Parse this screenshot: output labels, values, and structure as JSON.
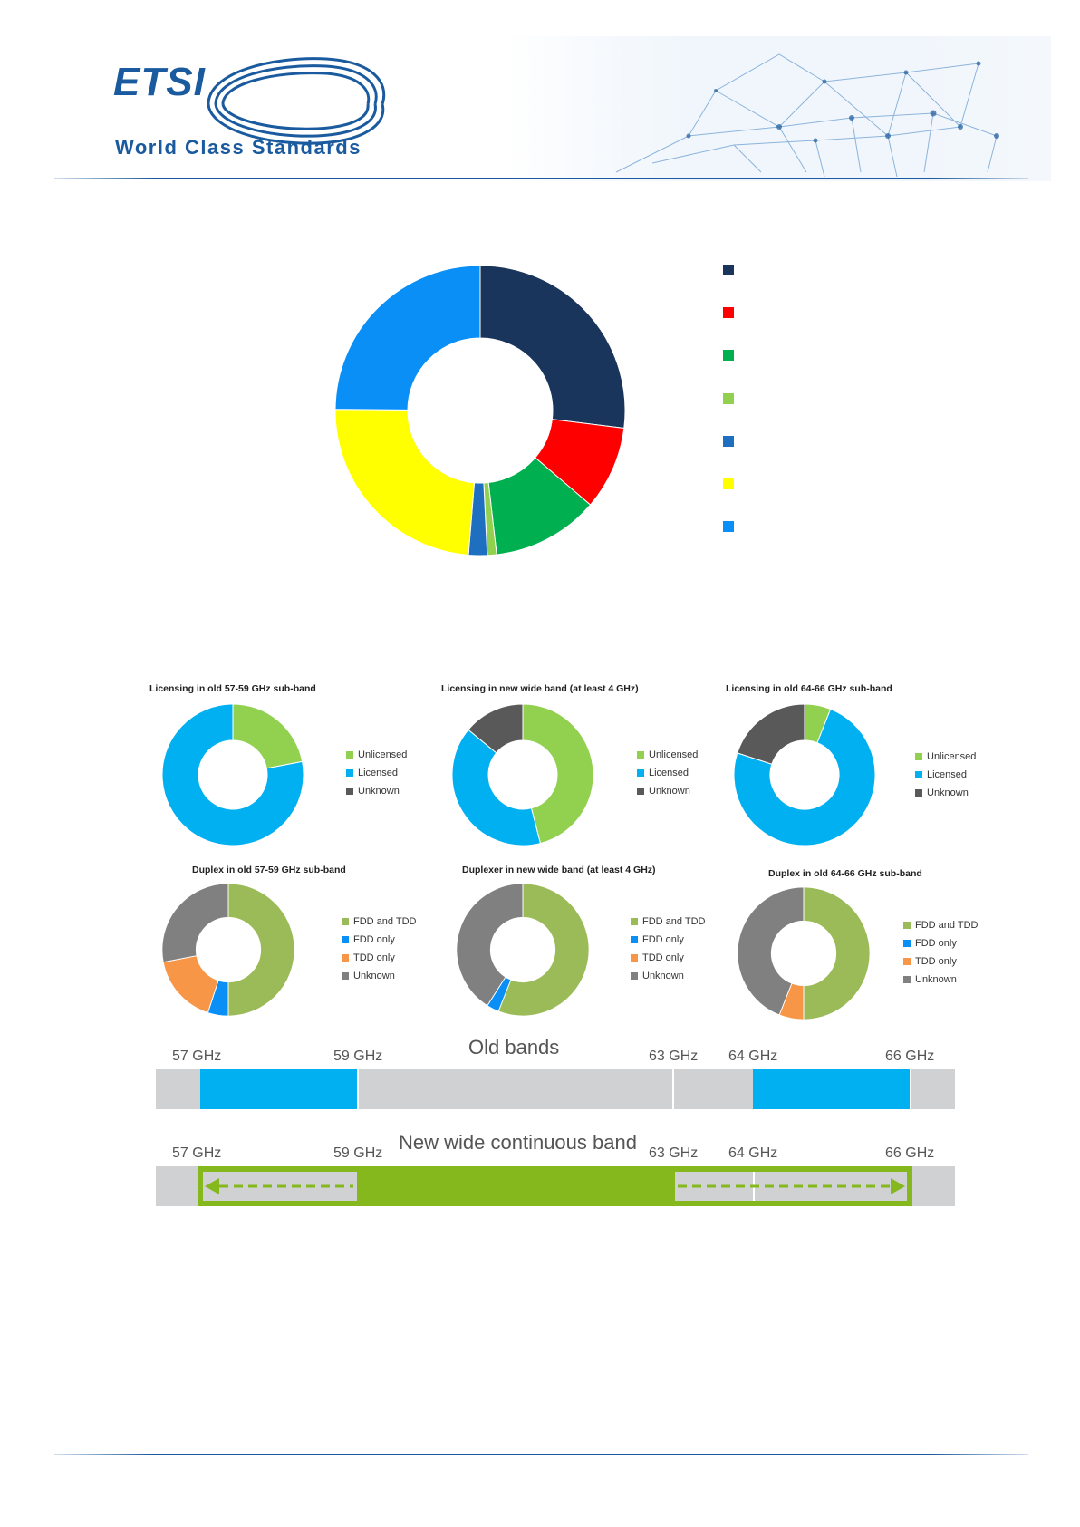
{
  "header": {
    "logo_text": "ETSI",
    "tagline": "World Class Standards"
  },
  "main_chart": {
    "colors": [
      "#1a355b",
      "#ff0000",
      "#00b050",
      "#92d050",
      "#1f6fc0",
      "#ffff00",
      "#0a8ff7"
    ],
    "legend_labels": [
      "",
      "",
      "",
      "",
      "",
      "",
      ""
    ]
  },
  "chart_data": [
    {
      "type": "pie",
      "title": "",
      "values": [
        26,
        9,
        11.5,
        1,
        2,
        23,
        24
      ],
      "colors": [
        "#1a355b",
        "#ff0000",
        "#00b050",
        "#92d050",
        "#1f6fc0",
        "#ffff00",
        "#0a8ff7"
      ]
    },
    {
      "type": "pie",
      "title": "Licensing in old 57-59 GHz sub-band",
      "categories": [
        "Unlicensed",
        "Licensed",
        "Unknown"
      ],
      "values": [
        22,
        78,
        0
      ],
      "colors": [
        "#92d050",
        "#00b0f0",
        "#595959"
      ]
    },
    {
      "type": "pie",
      "title": "Licensing in new wide band (at least 4 GHz)",
      "categories": [
        "Unlicensed",
        "Licensed",
        "Unknown"
      ],
      "values": [
        46,
        40,
        14
      ],
      "colors": [
        "#92d050",
        "#00b0f0",
        "#595959"
      ]
    },
    {
      "type": "pie",
      "title": "Licensing in old 64-66 GHz sub-band",
      "categories": [
        "Unlicensed",
        "Licensed",
        "Unknown"
      ],
      "values": [
        6,
        74,
        20
      ],
      "colors": [
        "#92d050",
        "#00b0f0",
        "#595959"
      ]
    },
    {
      "type": "pie",
      "title": "Duplex in old 57-59 GHz sub-band",
      "categories": [
        "FDD and TDD",
        "FDD only",
        "TDD only",
        "Unknown"
      ],
      "values": [
        50,
        5,
        17,
        28
      ],
      "colors": [
        "#9bbb59",
        "#0a8ff7",
        "#f79646",
        "#808080"
      ]
    },
    {
      "type": "pie",
      "title": "Duplexer in new wide band (at least 4 GHz)",
      "categories": [
        "FDD and TDD",
        "FDD only",
        "TDD only",
        "Unknown"
      ],
      "values": [
        56,
        3,
        0,
        41
      ],
      "colors": [
        "#9bbb59",
        "#0a8ff7",
        "#f79646",
        "#808080"
      ]
    },
    {
      "type": "pie",
      "title": "Duplex in old 64-66 GHz sub-band",
      "categories": [
        "FDD and TDD",
        "FDD only",
        "TDD only",
        "Unknown"
      ],
      "values": [
        50,
        0,
        6,
        44
      ],
      "colors": [
        "#9bbb59",
        "#0a8ff7",
        "#f79646",
        "#808080"
      ]
    }
  ],
  "bands": {
    "old_title": "Old bands",
    "new_title": "New wide continuous band",
    "labels": [
      "57 GHz",
      "59 GHz",
      "63 GHz",
      "64 GHz",
      "66 GHz"
    ]
  }
}
